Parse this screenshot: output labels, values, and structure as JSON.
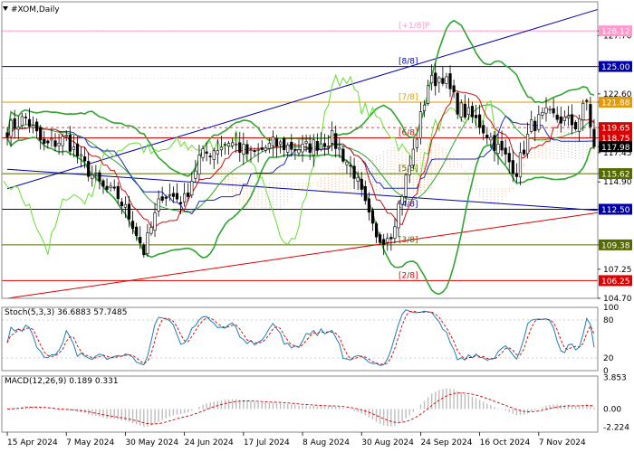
{
  "window": {
    "title": "#XOM,Daily",
    "icon": "triangle-down-icon"
  },
  "colors": {
    "background": "#ffffff",
    "grid": "#c8c8c8",
    "bull_candle": "#ffffff",
    "bear_candle": "#000000",
    "bollinger": "#2ea52e",
    "chikou": "#66dd33",
    "kijun": "#1b2fb0",
    "tenkan": "#cc1111",
    "kumo": "#f2a060",
    "murray_blue": "#0000aa",
    "murray_orange": "#e69a00",
    "murray_red": "#dd0000",
    "murray_green": "#556b00",
    "murray_pink": "#ff99cc",
    "trend_blue": "#1b2fb0",
    "trend_red": "#cc0000",
    "stoch_main": "#1f7fb0",
    "stoch_signal": "#cc0000",
    "macd_hist": "#bdbdbd",
    "macd_signal": "#cc0000"
  },
  "chart_data": [
    {
      "type": "candlestick",
      "title": "#XOM,Daily",
      "ylim": [
        104.7,
        129.4
      ],
      "y_ticks": [
        104.7,
        107.25,
        109.38,
        112.5,
        114.9,
        115.62,
        117.45,
        117.98,
        118.75,
        119.65,
        121.88,
        122.6,
        125.0,
        127.7,
        128.12
      ],
      "y_tick_labels": [
        "104.70",
        "107.25",
        "",
        "",
        "114.90",
        "",
        "117.45",
        "",
        "",
        "",
        "",
        "122.60",
        "",
        "127.70",
        ""
      ],
      "x_labels": [
        "15 Apr 2024",
        "7 May 2024",
        "30 May 2024",
        "24 Jun 2024",
        "17 Jul 2024",
        "8 Aug 2024",
        "30 Aug 2024",
        "24 Sep 2024",
        "16 Oct 2024",
        "7 Nov 2024"
      ],
      "x_label_indices": [
        0,
        16,
        32,
        48,
        64,
        80,
        96,
        112,
        128,
        144
      ],
      "n_bars": 160,
      "last_price": 117.98,
      "murray_levels": [
        {
          "label": "[+1/8]P",
          "value": 128.12,
          "color": "pink"
        },
        {
          "label": "[8/8]",
          "value": 125.0,
          "color": "blue"
        },
        {
          "label": "[7/8]",
          "value": 121.88,
          "color": "orange"
        },
        {
          "label": "[6/8]",
          "value": 118.75,
          "color": "red"
        },
        {
          "label": "[5/8]",
          "value": 115.62,
          "color": "green"
        },
        {
          "label": "[4/8]",
          "value": 112.5,
          "color": "blue"
        },
        {
          "label": "[3/8]",
          "value": 109.38,
          "color": "green"
        },
        {
          "label": "[2/8]",
          "value": 106.25,
          "color": "red"
        }
      ],
      "price_tags": [
        {
          "value": 128.12,
          "text": "128.12",
          "color": "pink"
        },
        {
          "value": 125.0,
          "text": "125.00",
          "color": "blue"
        },
        {
          "value": 121.88,
          "text": "121.88",
          "color": "orange"
        },
        {
          "value": 119.65,
          "text": "119.65",
          "color": "red"
        },
        {
          "value": 118.75,
          "text": "118.75",
          "color": "red"
        },
        {
          "value": 117.98,
          "text": "117.98",
          "color": "black"
        },
        {
          "value": 115.62,
          "text": "115.62",
          "color": "green"
        },
        {
          "value": 112.5,
          "text": "112.50",
          "color": "blue"
        },
        {
          "value": 109.38,
          "text": "109.38",
          "color": "green"
        },
        {
          "value": 106.25,
          "text": "106.25",
          "color": "red"
        }
      ],
      "dashed_level": 119.65,
      "close_anchors": [
        [
          0,
          119.5
        ],
        [
          5,
          120.5
        ],
        [
          10,
          118.0
        ],
        [
          16,
          118.7
        ],
        [
          20,
          116.7
        ],
        [
          26,
          114.3
        ],
        [
          30,
          113.6
        ],
        [
          34,
          111.3
        ],
        [
          37,
          108.8
        ],
        [
          42,
          113.9
        ],
        [
          48,
          113.3
        ],
        [
          52,
          117.0
        ],
        [
          60,
          118.5
        ],
        [
          66,
          117.2
        ],
        [
          72,
          118.2
        ],
        [
          80,
          117.8
        ],
        [
          88,
          118.7
        ],
        [
          94,
          115.7
        ],
        [
          100,
          109.7
        ],
        [
          104,
          110.5
        ],
        [
          110,
          117.5
        ],
        [
          114,
          123.5
        ],
        [
          118,
          124.2
        ],
        [
          122,
          121.5
        ],
        [
          128,
          120.0
        ],
        [
          134,
          117.4
        ],
        [
          138,
          115.9
        ],
        [
          142,
          119.8
        ],
        [
          146,
          120.7
        ],
        [
          150,
          120.4
        ],
        [
          154,
          119.9
        ],
        [
          157,
          121.9
        ],
        [
          159,
          117.98
        ]
      ],
      "trendlines": [
        {
          "color": "blue",
          "from": [
            0,
            114.3
          ],
          "to": [
            160,
            130.0
          ]
        },
        {
          "color": "blue",
          "from": [
            0,
            116.0
          ],
          "to": [
            160,
            112.4
          ]
        },
        {
          "color": "red",
          "from": [
            0,
            104.7
          ],
          "to": [
            160,
            112.2
          ]
        }
      ]
    },
    {
      "type": "line",
      "title": "Stoch(5,3,3) 36.6883 57.7485",
      "ylim": [
        0,
        100
      ],
      "y_ticks": [
        100,
        80,
        20,
        0
      ],
      "y_tick_labels": [
        "100",
        "80",
        "20",
        "0"
      ],
      "series": [
        {
          "name": "Stoch(5,3,3)",
          "last": 36.6883
        },
        {
          "name": "Signal",
          "last": 57.7485
        }
      ]
    },
    {
      "type": "bar",
      "title": "MACD(12,26,9) 0.189 0.331",
      "ylim": [
        -2.8,
        4.0
      ],
      "y_ticks": [
        3.853,
        0.0,
        -2.224
      ],
      "y_tick_labels": [
        "3.853",
        "0.00",
        "-2.224"
      ],
      "series": [
        {
          "name": "MACD(12,26,9)",
          "last": 0.189
        },
        {
          "name": "Signal",
          "last": 0.331
        }
      ]
    }
  ]
}
